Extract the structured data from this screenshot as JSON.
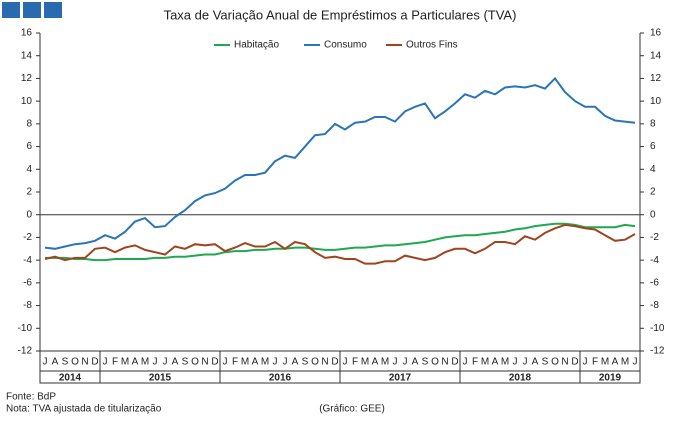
{
  "chart_data": {
    "type": "line",
    "title": "Taxa de Variação Anual de Empréstimos a Particulares (TVA)",
    "categories": [
      "J",
      "A",
      "S",
      "O",
      "N",
      "D",
      "J",
      "F",
      "M",
      "A",
      "M",
      "J",
      "J",
      "A",
      "S",
      "O",
      "N",
      "D",
      "J",
      "F",
      "M",
      "A",
      "M",
      "J",
      "J",
      "A",
      "S",
      "O",
      "N",
      "D",
      "J",
      "F",
      "M",
      "A",
      "M",
      "J",
      "J",
      "A",
      "S",
      "O",
      "N",
      "D",
      "J",
      "F",
      "M",
      "A",
      "M",
      "J",
      "J",
      "A",
      "S",
      "O",
      "N",
      "D",
      "J",
      "F",
      "M",
      "A",
      "M",
      "J"
    ],
    "years": [
      "2014",
      "2015",
      "2016",
      "2017",
      "2018",
      "2019"
    ],
    "series": [
      {
        "name": "Habitação",
        "color": "#1fa84f",
        "values": [
          -3.8,
          -3.8,
          -3.8,
          -3.9,
          -3.9,
          -4.0,
          -4.0,
          -3.9,
          -3.9,
          -3.9,
          -3.9,
          -3.8,
          -3.8,
          -3.7,
          -3.7,
          -3.6,
          -3.5,
          -3.5,
          -3.3,
          -3.2,
          -3.2,
          -3.1,
          -3.1,
          -3.0,
          -3.0,
          -2.9,
          -2.9,
          -3.0,
          -3.1,
          -3.1,
          -3.0,
          -2.9,
          -2.9,
          -2.8,
          -2.7,
          -2.7,
          -2.6,
          -2.5,
          -2.4,
          -2.2,
          -2.0,
          -1.9,
          -1.8,
          -1.8,
          -1.7,
          -1.6,
          -1.5,
          -1.3,
          -1.2,
          -1.0,
          -0.9,
          -0.8,
          -0.8,
          -0.9,
          -1.1,
          -1.1,
          -1.1,
          -1.1,
          -0.9,
          -1.0
        ]
      },
      {
        "name": "Consumo",
        "color": "#2a74b8",
        "values": [
          -2.9,
          -3.0,
          -2.8,
          -2.6,
          -2.5,
          -2.3,
          -1.8,
          -2.1,
          -1.5,
          -0.6,
          -0.3,
          -1.1,
          -1.0,
          -0.2,
          0.4,
          1.2,
          1.7,
          1.9,
          2.3,
          3.0,
          3.5,
          3.5,
          3.7,
          4.7,
          5.2,
          5.0,
          6.0,
          7.0,
          7.1,
          8.0,
          7.5,
          8.1,
          8.2,
          8.6,
          8.6,
          8.2,
          9.1,
          9.5,
          9.8,
          8.5,
          9.1,
          9.8,
          10.6,
          10.3,
          10.9,
          10.6,
          11.2,
          11.3,
          11.2,
          11.4,
          11.1,
          12.0,
          10.8,
          10.0,
          9.5,
          9.5,
          8.7,
          8.3,
          8.2,
          8.1
        ]
      },
      {
        "name": "Outros Fins",
        "color": "#a0441f",
        "values": [
          -3.9,
          -3.7,
          -4.0,
          -3.8,
          -3.8,
          -3.0,
          -2.9,
          -3.3,
          -2.9,
          -2.7,
          -3.1,
          -3.3,
          -3.5,
          -2.8,
          -3.0,
          -2.6,
          -2.7,
          -2.6,
          -3.2,
          -2.9,
          -2.5,
          -2.8,
          -2.8,
          -2.4,
          -3.0,
          -2.4,
          -2.6,
          -3.3,
          -3.8,
          -3.7,
          -3.9,
          -3.9,
          -4.3,
          -4.3,
          -4.1,
          -4.1,
          -3.6,
          -3.8,
          -4.0,
          -3.8,
          -3.3,
          -3.0,
          -3.0,
          -3.4,
          -3.0,
          -2.4,
          -2.4,
          -2.6,
          -1.9,
          -2.2,
          -1.6,
          -1.2,
          -0.9,
          -1.0,
          -1.2,
          -1.3,
          -1.8,
          -2.3,
          -2.2,
          -1.7
        ]
      }
    ],
    "ylim": [
      -12,
      16
    ],
    "yticks": [
      -12,
      -10,
      -8,
      -6,
      -4,
      -2,
      0,
      2,
      4,
      6,
      8,
      10,
      12,
      14,
      16
    ],
    "y2lim": [
      -12,
      16
    ],
    "y2ticks": [
      -12,
      -10,
      -8,
      -6,
      -4,
      -2,
      0,
      2,
      4,
      6,
      8,
      10,
      12,
      14,
      16
    ],
    "source": "Fonte: BdP",
    "note": "Nota: TVA ajustada de titularização",
    "credit": "(Gráfico: GEE)"
  }
}
